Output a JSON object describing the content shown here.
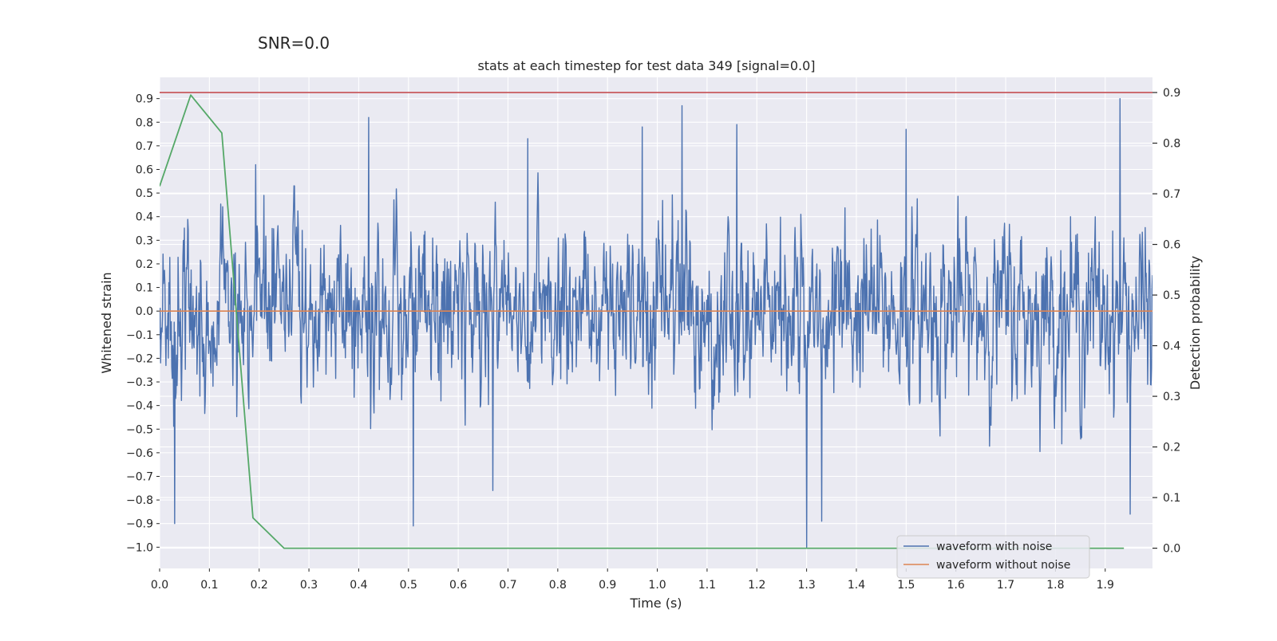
{
  "figure": {
    "suptitle": "SNR=0.0"
  },
  "chart_data": {
    "type": "line",
    "title": "stats at each timestep for test data 349 [signal=0.0]",
    "xlabel": "Time (s)",
    "ylabel": "Whitened strain",
    "y2label": "Detection probability",
    "xlim": [
      0.0,
      1.995
    ],
    "ylim": [
      -1.09,
      0.99
    ],
    "y2lim": [
      -0.04,
      0.93
    ],
    "xticks": [
      "0.0",
      "0.1",
      "0.2",
      "0.3",
      "0.4",
      "0.5",
      "0.6",
      "0.7",
      "0.8",
      "0.9",
      "1.0",
      "1.1",
      "1.2",
      "1.3",
      "1.4",
      "1.5",
      "1.6",
      "1.7",
      "1.8",
      "1.9"
    ],
    "yticks": [
      "0.9",
      "0.8",
      "0.7",
      "0.6",
      "0.5",
      "0.4",
      "0.3",
      "0.2",
      "0.1",
      "0.0",
      "−0.1",
      "−0.2",
      "−0.3",
      "−0.4",
      "−0.5",
      "−0.6",
      "−0.7",
      "−0.8",
      "−0.9",
      "−1.0"
    ],
    "y2ticks": [
      "0.9",
      "0.8",
      "0.7",
      "0.6",
      "0.5",
      "0.4",
      "0.3",
      "0.2",
      "0.1",
      "0.0"
    ],
    "grid": true,
    "legend_position": "lower-right",
    "series": [
      {
        "name": "waveform with noise",
        "axis": "left",
        "color": "#4c72b0",
        "style": "dense-noise",
        "n_samples": 2048,
        "approx_std": 0.25,
        "approx_range": [
          -1.0,
          0.9
        ],
        "notable_peaks": [
          {
            "x": 0.03,
            "y": -0.9
          },
          {
            "x": 0.21,
            "y": 0.49
          },
          {
            "x": 0.42,
            "y": 0.82
          },
          {
            "x": 0.51,
            "y": -0.91
          },
          {
            "x": 0.67,
            "y": -0.76
          },
          {
            "x": 0.74,
            "y": 0.73
          },
          {
            "x": 0.97,
            "y": 0.78
          },
          {
            "x": 1.05,
            "y": 0.87
          },
          {
            "x": 1.16,
            "y": 0.79
          },
          {
            "x": 1.3,
            "y": -1.0
          },
          {
            "x": 1.33,
            "y": -0.89
          },
          {
            "x": 1.5,
            "y": 0.77
          },
          {
            "x": 1.93,
            "y": 0.9
          },
          {
            "x": 1.95,
            "y": -0.86
          }
        ]
      },
      {
        "name": "waveform without noise",
        "axis": "left",
        "color": "#dd8452",
        "x": [
          0.0,
          1.995
        ],
        "y": [
          0.0,
          0.0
        ]
      },
      {
        "name": "",
        "axis": "right",
        "color": "#55a868",
        "x": [
          0.0,
          0.0625,
          0.125,
          0.1875,
          0.25,
          0.3125,
          1.9375
        ],
        "y": [
          0.715,
          0.895,
          0.82,
          0.06,
          0.0,
          0.0,
          0.0
        ]
      },
      {
        "name": "",
        "axis": "right",
        "color": "#c44e52",
        "x": [
          0.0,
          1.995
        ],
        "y": [
          0.9,
          0.9
        ]
      }
    ]
  }
}
